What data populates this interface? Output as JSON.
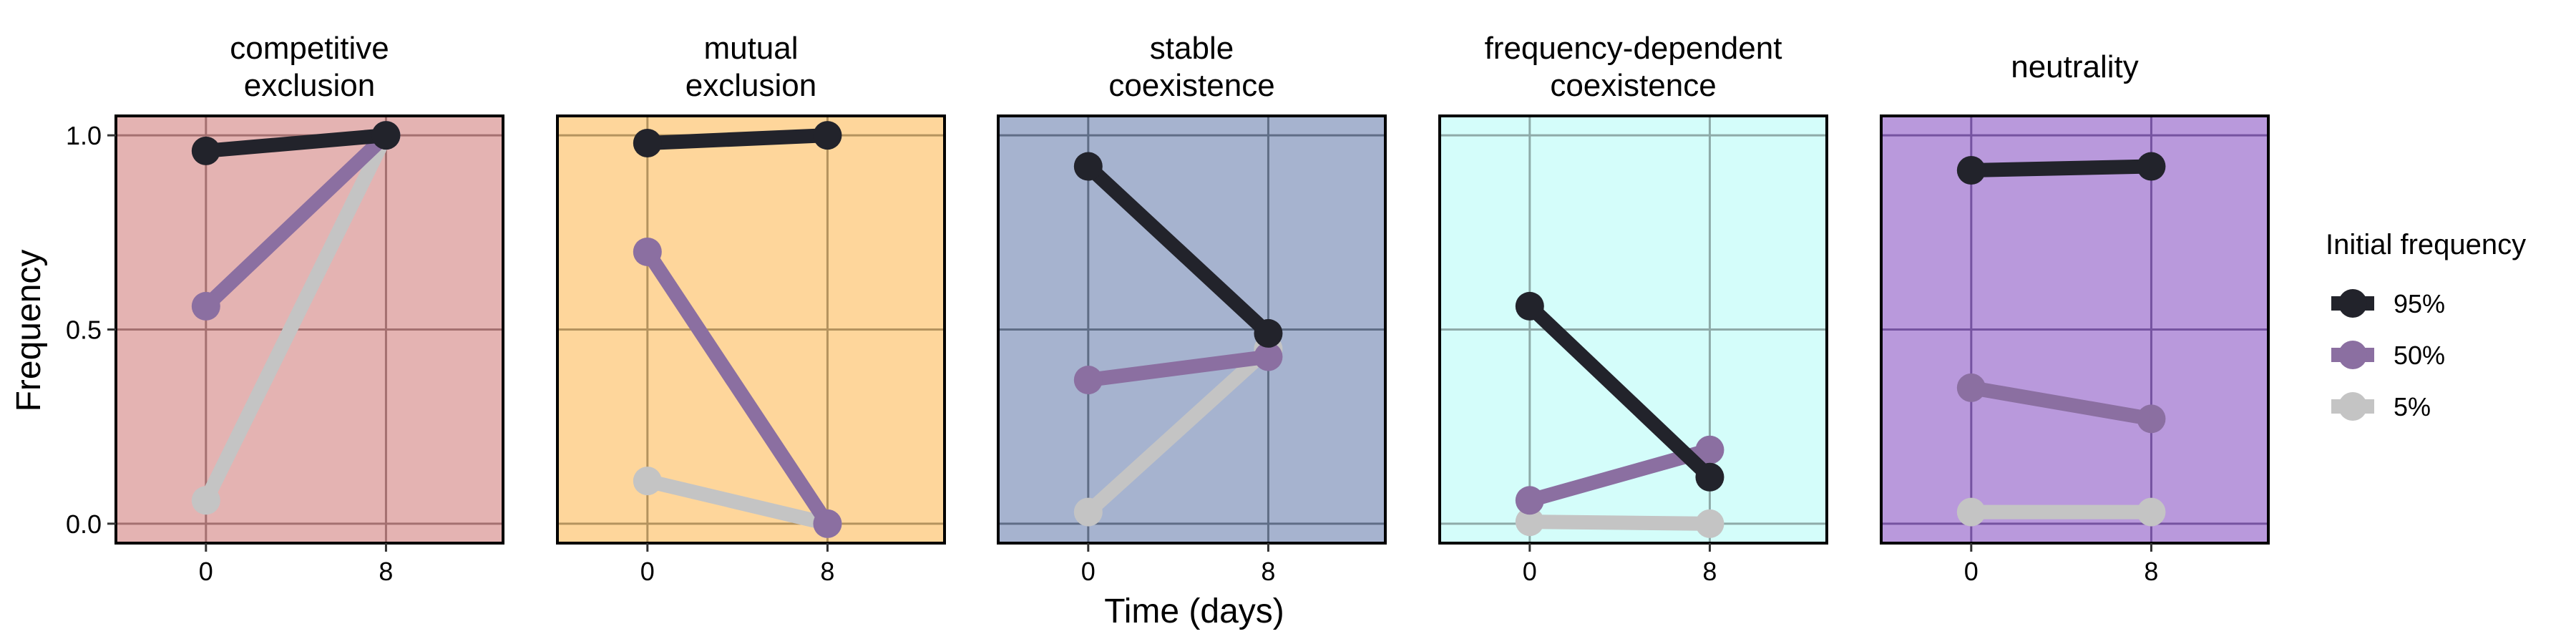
{
  "chart_data": {
    "type": "line",
    "xlabel": "Time (days)",
    "ylabel": "Frequency",
    "x": [
      0,
      8
    ],
    "x_ticks": [
      "0",
      "8"
    ],
    "y_ticks": [
      "0.0",
      "0.5",
      "1.0"
    ],
    "ylim": [
      -0.05,
      1.05
    ],
    "xlim": [
      -4,
      13.2
    ],
    "legend": {
      "title": "Initial frequency",
      "placement": "right",
      "entries": [
        {
          "label": "95%",
          "color": "#22232b"
        },
        {
          "label": "50%",
          "color": "#8b6fa1"
        },
        {
          "label": "5%",
          "color": "#c4c4c4"
        }
      ]
    },
    "panels": [
      {
        "title": [
          "competitive",
          "exclusion"
        ],
        "background": "#e4b3b2",
        "grid": "#a47070",
        "series": [
          {
            "legend": "95%",
            "values": [
              0.96,
              1.0
            ]
          },
          {
            "legend": "50%",
            "values": [
              0.56,
              1.0
            ]
          },
          {
            "legend": "5%",
            "values": [
              0.06,
              1.0
            ]
          }
        ]
      },
      {
        "title": [
          "mutual",
          "exclusion"
        ],
        "background": "#fed69b",
        "grid": "#b4935e",
        "series": [
          {
            "legend": "95%",
            "values": [
              0.98,
              1.0
            ]
          },
          {
            "legend": "50%",
            "values": [
              0.7,
              0.0
            ]
          },
          {
            "legend": "5%",
            "values": [
              0.11,
              0.0
            ]
          }
        ]
      },
      {
        "title": [
          "stable",
          "coexistence"
        ],
        "background": "#a6b3cf",
        "grid": "#5f6d86",
        "series": [
          {
            "legend": "95%",
            "values": [
              0.92,
              0.49
            ]
          },
          {
            "legend": "50%",
            "values": [
              0.37,
              0.43
            ]
          },
          {
            "legend": "5%",
            "values": [
              0.03,
              0.45
            ]
          }
        ]
      },
      {
        "title": [
          "frequency-dependent",
          "coexistence"
        ],
        "background": "#d4fdfa",
        "grid": "#8eaaa8",
        "series": [
          {
            "legend": "95%",
            "values": [
              0.56,
              0.12
            ]
          },
          {
            "legend": "50%",
            "values": [
              0.06,
              0.19
            ]
          },
          {
            "legend": "5%",
            "values": [
              0.005,
              0.0
            ]
          }
        ]
      },
      {
        "title": [
          "neutrality"
        ],
        "background": "#b999dc",
        "grid": "#7553a0",
        "series": [
          {
            "legend": "95%",
            "values": [
              0.91,
              0.92
            ]
          },
          {
            "legend": "50%",
            "values": [
              0.35,
              0.27
            ]
          },
          {
            "legend": "5%",
            "values": [
              0.03,
              0.03
            ]
          }
        ]
      }
    ]
  }
}
